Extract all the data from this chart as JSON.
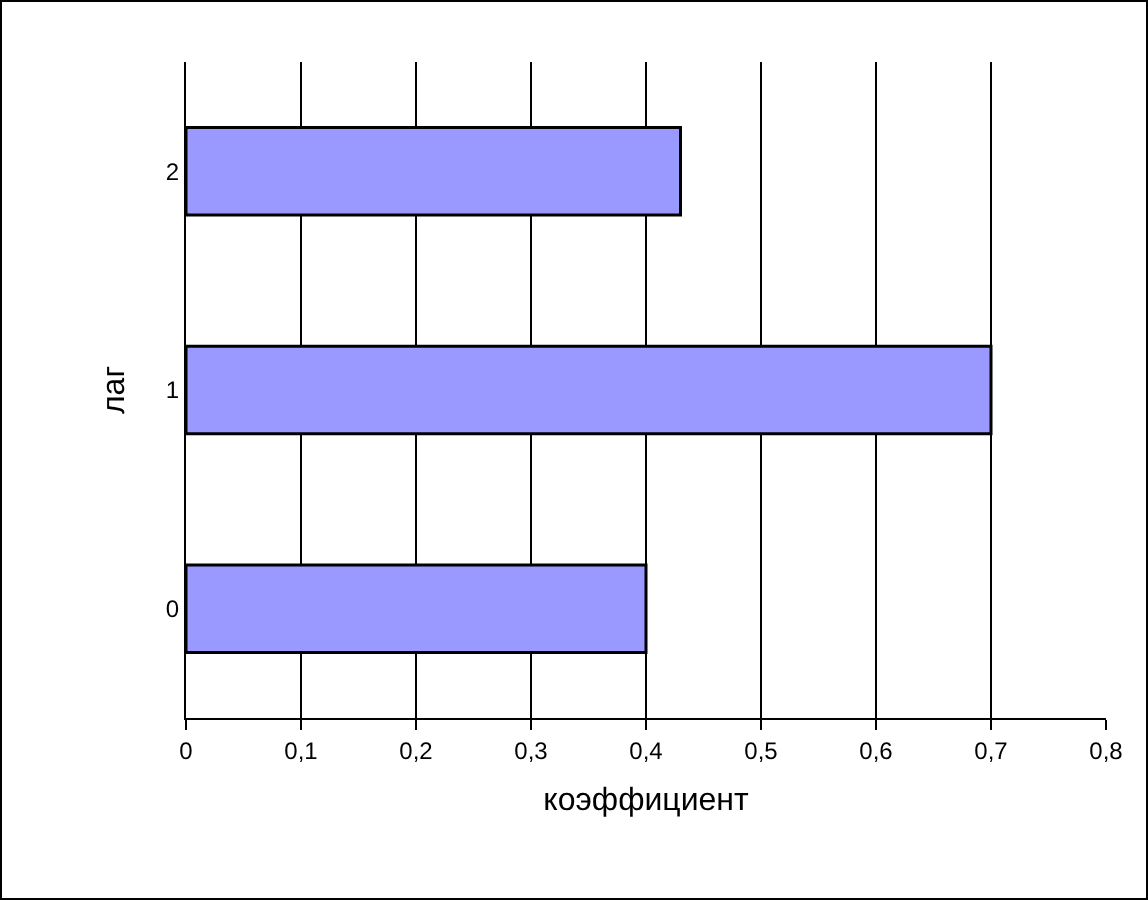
{
  "chart_data": {
    "type": "bar",
    "orientation": "horizontal",
    "xlabel": "коэффициент",
    "ylabel": "лаг",
    "categories": [
      "2",
      "1",
      "0"
    ],
    "values": [
      0.43,
      0.7,
      0.4
    ],
    "color": "#9999ff",
    "xlim": [
      0,
      0.8
    ],
    "xticks": [
      {
        "value": 0,
        "label": "0"
      },
      {
        "value": 0.1,
        "label": "0,1"
      },
      {
        "value": 0.2,
        "label": "0,2"
      },
      {
        "value": 0.3,
        "label": "0,3"
      },
      {
        "value": 0.4,
        "label": "0,4"
      },
      {
        "value": 0.5,
        "label": "0,5"
      },
      {
        "value": 0.6,
        "label": "0,6"
      },
      {
        "value": 0.7,
        "label": "0,7"
      },
      {
        "value": 0.8,
        "label": "0,8"
      }
    ],
    "grid": "x"
  }
}
